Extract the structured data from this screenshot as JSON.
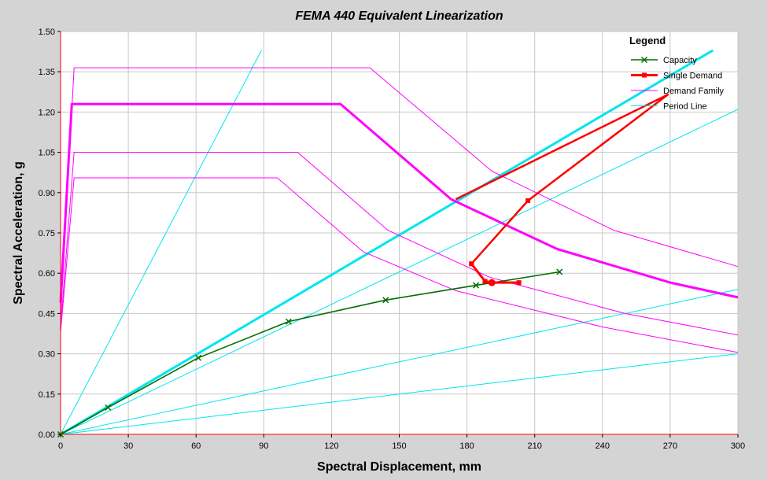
{
  "chart_data": {
    "type": "line",
    "title": "FEMA 440 Equivalent Linearization",
    "xlabel": "Spectral Displacement, mm",
    "ylabel": "Spectral Acceleration, g",
    "xlim": [
      0,
      300
    ],
    "ylim": [
      0,
      1.5
    ],
    "xticks": [
      "0",
      "30",
      "60",
      "90",
      "120",
      "150",
      "180",
      "210",
      "240",
      "270",
      "300"
    ],
    "yticks": [
      "0.00",
      "0.15",
      "0.30",
      "0.45",
      "0.60",
      "0.75",
      "0.90",
      "1.05",
      "1.20",
      "1.35",
      "1.50"
    ],
    "grid": true,
    "legend": {
      "title": "Legend",
      "placement": "top-right",
      "entries": [
        "Capacity",
        "Single Demand",
        "Demand Family",
        "Period Line"
      ]
    },
    "colors": {
      "capacity": "#007000",
      "single_demand": "#ff0000",
      "demand_family": "#ff00ff",
      "period_line": "#00e5ee",
      "axis": "#ff0000",
      "grid": "#c8c8c8"
    },
    "series": [
      {
        "name": "Capacity",
        "role": "capacity",
        "points": [
          [
            0,
            0
          ],
          [
            21,
            0.1
          ],
          [
            61,
            0.285
          ],
          [
            101,
            0.42
          ],
          [
            144,
            0.5
          ],
          [
            184,
            0.555
          ],
          [
            221,
            0.605
          ]
        ]
      },
      {
        "name": "Single Demand",
        "role": "single_demand",
        "points": [
          [
            182,
            0.635
          ],
          [
            188,
            0.57
          ],
          [
            191,
            0.565
          ],
          [
            203,
            0.565
          ]
        ]
      },
      {
        "role": "single_demand_loop",
        "points": [
          [
            182,
            0.635
          ],
          [
            207,
            0.87
          ],
          [
            269,
            1.265
          ],
          [
            175,
            0.875
          ]
        ]
      },
      {
        "role": "single_demand_point",
        "points": [
          [
            191,
            0.565
          ]
        ]
      },
      {
        "name": "Demand Family",
        "role": "demand_family_bold",
        "points": [
          [
            0,
            0.49
          ],
          [
            5,
            1.23
          ],
          [
            124,
            1.23
          ],
          [
            173,
            0.875
          ],
          [
            220,
            0.69
          ],
          [
            270,
            0.565
          ],
          [
            300,
            0.51
          ]
        ]
      },
      {
        "role": "demand_family",
        "points": [
          [
            0,
            0.43
          ],
          [
            6,
            1.365
          ],
          [
            137,
            1.365
          ],
          [
            191,
            0.98
          ],
          [
            245,
            0.76
          ],
          [
            300,
            0.625
          ]
        ]
      },
      {
        "role": "demand_family",
        "points": [
          [
            0,
            0.4
          ],
          [
            6,
            1.05
          ],
          [
            105,
            1.05
          ],
          [
            145,
            0.76
          ],
          [
            190,
            0.585
          ],
          [
            250,
            0.45
          ],
          [
            300,
            0.37
          ]
        ]
      },
      {
        "role": "demand_family",
        "points": [
          [
            0,
            0.38
          ],
          [
            6,
            0.955
          ],
          [
            96,
            0.955
          ],
          [
            134,
            0.68
          ],
          [
            175,
            0.535
          ],
          [
            240,
            0.4
          ],
          [
            300,
            0.305
          ]
        ]
      },
      {
        "name": "Period Line",
        "role": "period_line_bold",
        "points": [
          [
            0,
            0
          ],
          [
            289,
            1.43
          ]
        ]
      },
      {
        "role": "period_line",
        "points": [
          [
            0,
            0
          ],
          [
            89,
            1.43
          ]
        ]
      },
      {
        "role": "period_line",
        "points": [
          [
            0,
            0
          ],
          [
            300,
            1.21
          ]
        ]
      },
      {
        "role": "period_line",
        "points": [
          [
            0,
            0
          ],
          [
            300,
            0.54
          ]
        ]
      },
      {
        "role": "period_line",
        "points": [
          [
            0,
            0
          ],
          [
            300,
            0.3
          ]
        ]
      }
    ]
  }
}
